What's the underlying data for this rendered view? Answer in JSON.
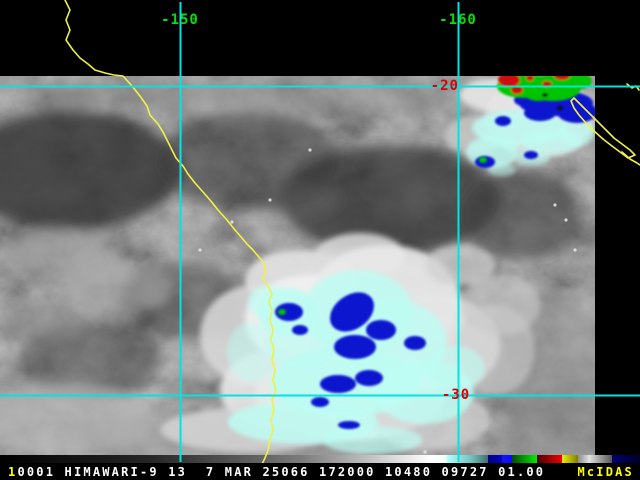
{
  "display": {
    "type": "mcidas-satellite-display",
    "satellite_channel": "HIMAWARI-9 band 13 infrared"
  },
  "colors": {
    "background": "#000000",
    "grid_line": "#00e4e4",
    "coastline": "#f0f046",
    "lon_label": "#00e400",
    "lat_label": "#e00000",
    "annotation_text": "#ffffff",
    "frame_number": "#ffff00",
    "brand": "#ffff00",
    "enh_pale_cyan": "#bdfcf2",
    "enh_blue": "#0813cf",
    "enh_green": "#00c400",
    "enh_red": "#cf0808"
  },
  "map": {
    "lon_labels": [
      {
        "text": "-150"
      },
      {
        "text": "-160"
      }
    ],
    "lat_labels": [
      {
        "text": "-20"
      },
      {
        "text": "-30"
      }
    ]
  },
  "status_bar": {
    "frame_number": "1",
    "annotation": "0001 HIMAWARI-9 13  7 MAR 25066 172000 10480 09727 01.00",
    "brand": "McIDAS"
  },
  "colorbar": {
    "stops": [
      {
        "w": 150,
        "from": "#000000",
        "to": "#262626"
      },
      {
        "w": 150,
        "from": "#262626",
        "to": "#7a7a7a"
      },
      {
        "w": 130,
        "from": "#7a7a7a",
        "to": "#ffffff"
      },
      {
        "w": 17,
        "from": "#ffffff",
        "to": "#f2ffff"
      },
      {
        "w": 23,
        "from": "#b0ffff",
        "to": "#74c8c4"
      },
      {
        "w": 18,
        "from": "#74c8c4",
        "to": "#3f6f6f"
      },
      {
        "w": 14,
        "from": "#00007e",
        "to": "#0000c8"
      },
      {
        "w": 10,
        "from": "#1414ee",
        "to": "#0a0aff"
      },
      {
        "w": 25,
        "from": "#004a00",
        "to": "#00ee00"
      },
      {
        "w": 25,
        "from": "#4a0000",
        "to": "#ee0000"
      },
      {
        "w": 16,
        "from": "#eeee00",
        "to": "#7e7e00"
      },
      {
        "w": 12,
        "from": "#8c8c8c",
        "to": "#e8e8e8"
      },
      {
        "w": 22,
        "from": "#dcdcdc",
        "to": "#565656"
      },
      {
        "w": 28,
        "from": "#00006e",
        "to": "#000026"
      }
    ]
  }
}
